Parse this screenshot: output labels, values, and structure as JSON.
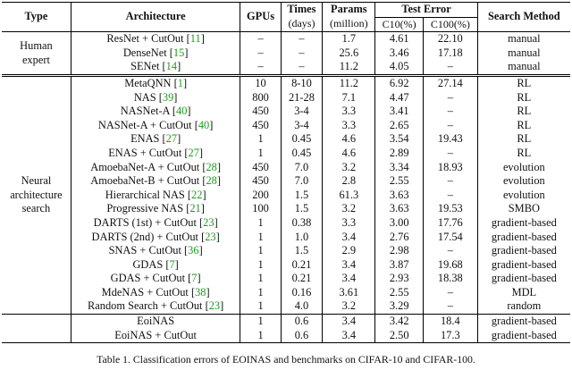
{
  "headers": {
    "type": "Type",
    "architecture": "Architecture",
    "gpus": "GPUs",
    "times": "Times",
    "times_unit": "(days)",
    "params": "Params",
    "params_unit": "(million)",
    "test_error": "Test Error",
    "c10": "C10(%)",
    "c100": "C100(%)",
    "search_method": "Search Method"
  },
  "groups": [
    {
      "type": [
        "Human",
        "expert"
      ],
      "rows": [
        {
          "arch": "ResNet + CutOut",
          "ref": "11",
          "gpus": "–",
          "times": "–",
          "params": "1.7",
          "c10": "4.61",
          "c100": "22.10",
          "method": "manual"
        },
        {
          "arch": "DenseNet",
          "ref": "15",
          "gpus": "–",
          "times": "–",
          "params": "25.6",
          "c10": "3.46",
          "c100": "17.18",
          "method": "manual"
        },
        {
          "arch": "SENet",
          "ref": "14",
          "gpus": "–",
          "times": "–",
          "params": "11.2",
          "c10": "4.05",
          "c100": "–",
          "method": "manual"
        }
      ]
    },
    {
      "type": [
        "Neural",
        "architecture",
        "search"
      ],
      "rows": [
        {
          "arch": "MetaQNN",
          "ref": "1",
          "gpus": "10",
          "times": "8-10",
          "params": "11.2",
          "c10": "6.92",
          "c100": "27.14",
          "method": "RL"
        },
        {
          "arch": "NAS",
          "ref": "39",
          "gpus": "800",
          "times": "21-28",
          "params": "7.1",
          "c10": "4.47",
          "c100": "–",
          "method": "RL"
        },
        {
          "arch": "NASNet-A",
          "ref": "40",
          "gpus": "450",
          "times": "3-4",
          "params": "3.3",
          "c10": "3.41",
          "c100": "–",
          "method": "RL"
        },
        {
          "arch": "NASNet-A + CutOut",
          "ref": "40",
          "gpus": "450",
          "times": "3-4",
          "params": "3.3",
          "c10": "2.65",
          "c100": "–",
          "method": "RL"
        },
        {
          "arch": "ENAS",
          "ref": "27",
          "gpus": "1",
          "times": "0.45",
          "params": "4.6",
          "c10": "3.54",
          "c100": "19.43",
          "method": "RL"
        },
        {
          "arch": "ENAS + CutOut",
          "ref": "27",
          "gpus": "1",
          "times": "0.45",
          "params": "4.6",
          "c10": "2.89",
          "c100": "–",
          "method": "RL"
        },
        {
          "arch": "AmoebaNet-A + CutOut",
          "ref": "28",
          "gpus": "450",
          "times": "7.0",
          "params": "3.2",
          "c10": "3.34",
          "c100": "18.93",
          "method": "evolution"
        },
        {
          "arch": "AmoebaNet-B + CutOut",
          "ref": "28",
          "gpus": "450",
          "times": "7.0",
          "params": "2.8",
          "c10": "2.55",
          "c100": "–",
          "method": "evolution"
        },
        {
          "arch": "Hierarchical NAS",
          "ref": "22",
          "gpus": "200",
          "times": "1.5",
          "params": "61.3",
          "c10": "3.63",
          "c100": "–",
          "method": "evolution"
        },
        {
          "arch": "Progressive NAS",
          "ref": "21",
          "gpus": "100",
          "times": "1.5",
          "params": "3.2",
          "c10": "3.63",
          "c100": "19.53",
          "method": "SMBO"
        },
        {
          "arch": "DARTS (1st) + CutOut",
          "ref": "23",
          "gpus": "1",
          "times": "0.38",
          "params": "3.3",
          "c10": "3.00",
          "c100": "17.76",
          "method": "gradient-based"
        },
        {
          "arch": "DARTS (2nd) + CutOut",
          "ref": "23",
          "gpus": "1",
          "times": "1.0",
          "params": "3.4",
          "c10": "2.76",
          "c100": "17.54",
          "method": "gradient-based"
        },
        {
          "arch": "SNAS + CutOut",
          "ref": "36",
          "gpus": "1",
          "times": "1.5",
          "params": "2.9",
          "c10": "2.98",
          "c100": "–",
          "method": "gradient-based"
        },
        {
          "arch": "GDAS",
          "ref": "7",
          "gpus": "1",
          "times": "0.21",
          "params": "3.4",
          "c10": "3.87",
          "c100": "19.68",
          "method": "gradient-based"
        },
        {
          "arch": "GDAS + CutOut",
          "ref": "7",
          "gpus": "1",
          "times": "0.21",
          "params": "3.4",
          "c10": "2.93",
          "c100": "18.38",
          "method": "gradient-based"
        },
        {
          "arch": "MdeNAS + CutOut",
          "ref": "38",
          "gpus": "1",
          "times": "0.16",
          "params": "3.61",
          "c10": "2.55",
          "c100": "–",
          "method": "MDL"
        },
        {
          "arch": "Random Search + CutOut",
          "ref": "23",
          "gpus": "1",
          "times": "4.0",
          "params": "3.2",
          "c10": "3.29",
          "c100": "–",
          "method": "random"
        }
      ]
    }
  ],
  "ours": [
    {
      "arch": "EoiNAS",
      "gpus": "1",
      "times": "0.6",
      "params": "3.4",
      "c10": "3.42",
      "c100": "18.4",
      "method": "gradient-based"
    },
    {
      "arch": "EoiNAS + CutOut",
      "gpus": "1",
      "times": "0.6",
      "params": "3.4",
      "c10": "2.50",
      "c100": "17.3",
      "method": "gradient-based"
    }
  ],
  "caption": "Table 1.  Classification errors of EOINAS and benchmarks on CIFAR-10 and CIFAR-100."
}
